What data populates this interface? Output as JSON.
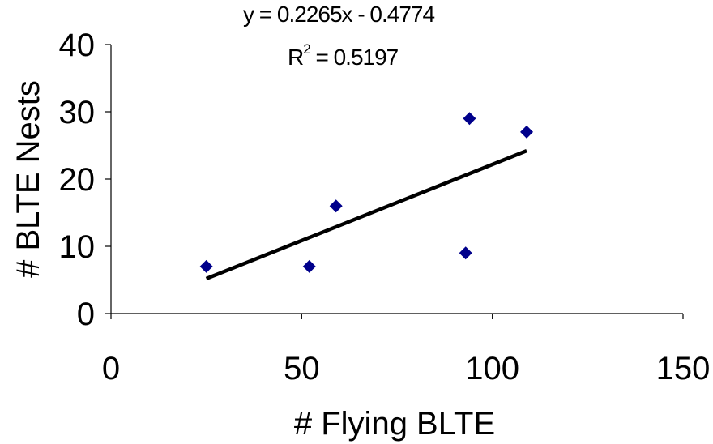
{
  "chart_data": {
    "type": "scatter",
    "title": "",
    "xlabel": "# Flying BLTE",
    "ylabel": "# BLTE Nests",
    "xlim": [
      0,
      150
    ],
    "ylim": [
      0,
      40
    ],
    "xticks": [
      0,
      50,
      100,
      150
    ],
    "yticks": [
      0,
      10,
      20,
      30,
      40
    ],
    "grid": false,
    "points": [
      {
        "x": 25,
        "y": 7
      },
      {
        "x": 52,
        "y": 7
      },
      {
        "x": 59,
        "y": 16
      },
      {
        "x": 93,
        "y": 9
      },
      {
        "x": 94,
        "y": 29
      },
      {
        "x": 109,
        "y": 27
      }
    ],
    "marker_color": "#00008B",
    "trendline": {
      "slope": 0.2265,
      "intercept": -0.4774,
      "x_range": [
        25,
        109
      ],
      "color": "#000000",
      "equation_text": "y = 0.2265x - 0.4774",
      "r2_label": "R",
      "r2_exp": "2",
      "r2_value_text": " = 0.5197"
    }
  }
}
